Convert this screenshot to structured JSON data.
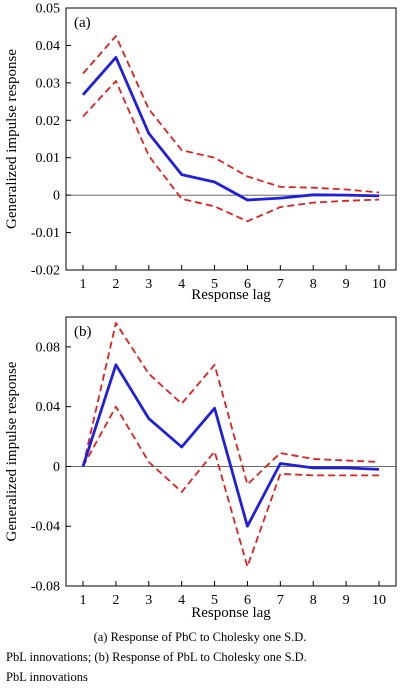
{
  "chart_data": [
    {
      "type": "line",
      "panel_label": "(a)",
      "xlabel": "Response lag",
      "ylabel": "Generalized impulse response",
      "x": [
        1,
        2,
        3,
        4,
        5,
        6,
        7,
        8,
        9,
        10
      ],
      "xticks": [
        "1",
        "2",
        "3",
        "4",
        "5",
        "6",
        "7",
        "8",
        "9",
        "10"
      ],
      "ylim": [
        -0.02,
        0.05
      ],
      "yticks": [
        -0.02,
        -0.01,
        0,
        0.01,
        0.02,
        0.03,
        0.04,
        0.05
      ],
      "ytick_labels": [
        "-0.02",
        "-0.01",
        "0",
        "0.01",
        "0.02",
        "0.03",
        "0.04",
        "0.05"
      ],
      "zero_line": true,
      "grid": false,
      "series": [
        {
          "role": "response",
          "color": "#1f1fdc",
          "style": "solid",
          "values": [
            0.0268,
            0.0368,
            0.0165,
            0.0055,
            0.0035,
            -0.0013,
            -0.0008,
            0.0001,
            0.0,
            -0.0002
          ]
        },
        {
          "role": "upper-band",
          "color": "#e02020",
          "style": "dashed",
          "values": [
            0.0325,
            0.0425,
            0.023,
            0.012,
            0.01,
            0.005,
            0.0022,
            0.002,
            0.0015,
            0.0007
          ]
        },
        {
          "role": "lower-band",
          "color": "#e02020",
          "style": "dashed",
          "values": [
            0.021,
            0.0305,
            0.0105,
            -0.001,
            -0.003,
            -0.007,
            -0.0032,
            -0.002,
            -0.0015,
            -0.0012
          ]
        }
      ]
    },
    {
      "type": "line",
      "panel_label": "(b)",
      "xlabel": "Response lag",
      "ylabel": "Generalized impulse response",
      "x": [
        1,
        2,
        3,
        4,
        5,
        6,
        7,
        8,
        9,
        10
      ],
      "xticks": [
        "1",
        "2",
        "3",
        "4",
        "5",
        "6",
        "7",
        "8",
        "9",
        "10"
      ],
      "ylim": [
        -0.08,
        0.1
      ],
      "yticks": [
        -0.08,
        -0.04,
        0,
        0.04,
        0.08
      ],
      "ytick_labels": [
        "-0.08",
        "-0.04",
        "0",
        "0.04",
        "0.08"
      ],
      "zero_line": true,
      "grid": false,
      "series": [
        {
          "role": "response",
          "color": "#1f1fdc",
          "style": "solid",
          "values": [
            0.0,
            0.068,
            0.032,
            0.013,
            0.039,
            -0.04,
            0.002,
            -0.001,
            -0.001,
            -0.002
          ]
        },
        {
          "role": "upper-band",
          "color": "#e02020",
          "style": "dashed",
          "values": [
            0.0,
            0.096,
            0.062,
            0.042,
            0.068,
            -0.012,
            0.009,
            0.005,
            0.004,
            0.003
          ]
        },
        {
          "role": "lower-band",
          "color": "#e02020",
          "style": "dashed",
          "values": [
            0.0,
            0.04,
            0.003,
            -0.017,
            0.01,
            -0.067,
            -0.005,
            -0.006,
            -0.006,
            -0.006
          ]
        }
      ]
    }
  ],
  "caption": {
    "line1": "(a) Response of PbC to Cholesky one S.D.",
    "line2": "PbL innovations; (b) Response of PbL to Cholesky one S.D.",
    "line3": "PbL innovations"
  }
}
